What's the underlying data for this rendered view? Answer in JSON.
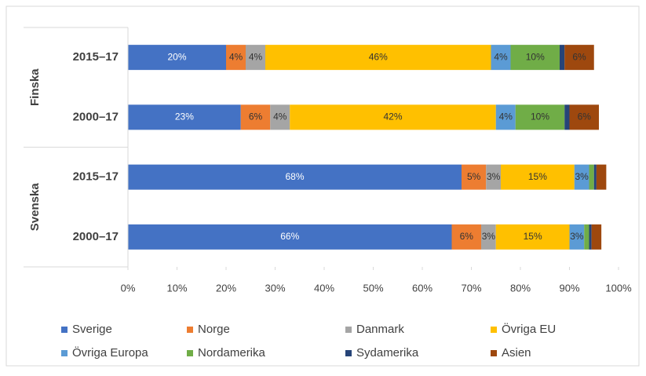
{
  "chart_data": {
    "type": "stacked-bar-horizontal",
    "categories": [
      "2015–17",
      "2000–17",
      "2015–17",
      "2000–17"
    ],
    "group_labels": [
      "Finska",
      "Svenska"
    ],
    "series": [
      {
        "name": "Sverige",
        "color": "#4472c4",
        "values": [
          20,
          23,
          68,
          66
        ],
        "value_labels": [
          "20%",
          "23%",
          "68%",
          "66%"
        ]
      },
      {
        "name": "Norge",
        "color": "#ed7d31",
        "values": [
          4,
          6,
          5,
          6
        ],
        "value_labels": [
          "4%",
          "6%",
          "5%",
          "6%"
        ]
      },
      {
        "name": "Danmark",
        "color": "#a5a5a5",
        "values": [
          4,
          4,
          3,
          3
        ],
        "value_labels": [
          "4%",
          "4%",
          "3%",
          "3%"
        ]
      },
      {
        "name": "Övriga EU",
        "color": "#ffc000",
        "values": [
          46,
          42,
          15,
          15
        ],
        "value_labels": [
          "46%",
          "42%",
          "15%",
          "15%"
        ]
      },
      {
        "name": "Övriga Europa",
        "color": "#5b9bd5",
        "values": [
          4,
          4,
          3,
          3
        ],
        "value_labels": [
          "4%",
          "4%",
          "3%",
          "3%"
        ]
      },
      {
        "name": "Nordamerika",
        "color": "#70ad47",
        "values": [
          10,
          10,
          1,
          1
        ],
        "value_labels": [
          "10%",
          "10%",
          null,
          null
        ]
      },
      {
        "name": "Sydamerika",
        "color": "#264478",
        "values": [
          1,
          1,
          0.5,
          0.5
        ],
        "value_labels": [
          null,
          null,
          null,
          null
        ]
      },
      {
        "name": "Asien",
        "color": "#9e480e",
        "values": [
          6,
          6,
          2,
          2
        ],
        "value_labels": [
          "6%",
          "6%",
          null,
          null
        ]
      }
    ],
    "xlim": [
      0,
      100
    ],
    "xticks": [
      {
        "value": 0,
        "label": "0%"
      },
      {
        "value": 10,
        "label": "10%"
      },
      {
        "value": 20,
        "label": "20%"
      },
      {
        "value": 30,
        "label": "30%"
      },
      {
        "value": 40,
        "label": "40%"
      },
      {
        "value": 50,
        "label": "50%"
      },
      {
        "value": 60,
        "label": "60%"
      },
      {
        "value": 70,
        "label": "70%"
      },
      {
        "value": 80,
        "label": "80%"
      },
      {
        "value": 90,
        "label": "90%"
      },
      {
        "value": 100,
        "label": "100%"
      }
    ],
    "legend": "bottom"
  }
}
